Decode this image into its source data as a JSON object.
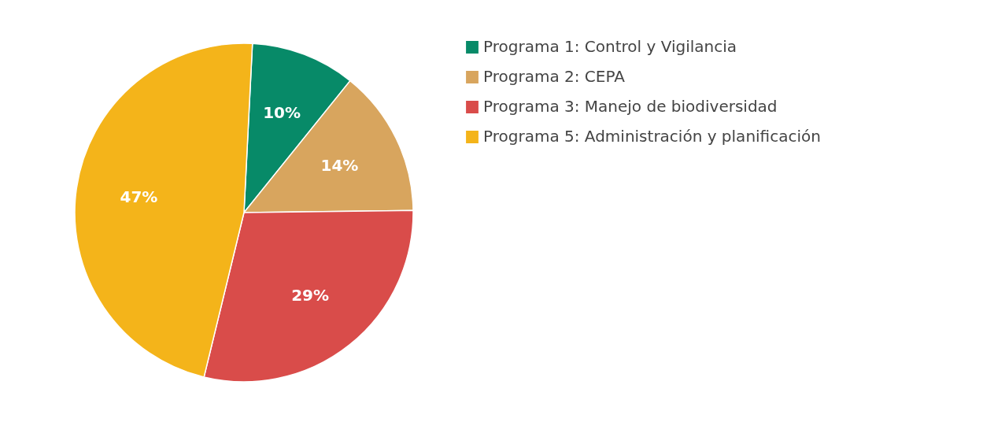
{
  "chart_data": {
    "type": "pie",
    "categories": [
      "Programa 1: Control y Vigilancia",
      "Programa 2: CEPA",
      "Programa 3: Manejo de biodiversidad",
      "Programa 5: Administración y planificación"
    ],
    "values": [
      10,
      14,
      29,
      47
    ],
    "colors": [
      "#078a68",
      "#d8a55e",
      "#d94c4a",
      "#f4b41a"
    ],
    "value_labels": [
      "10%",
      "14%",
      "29%",
      "47%"
    ],
    "legend": "right"
  }
}
